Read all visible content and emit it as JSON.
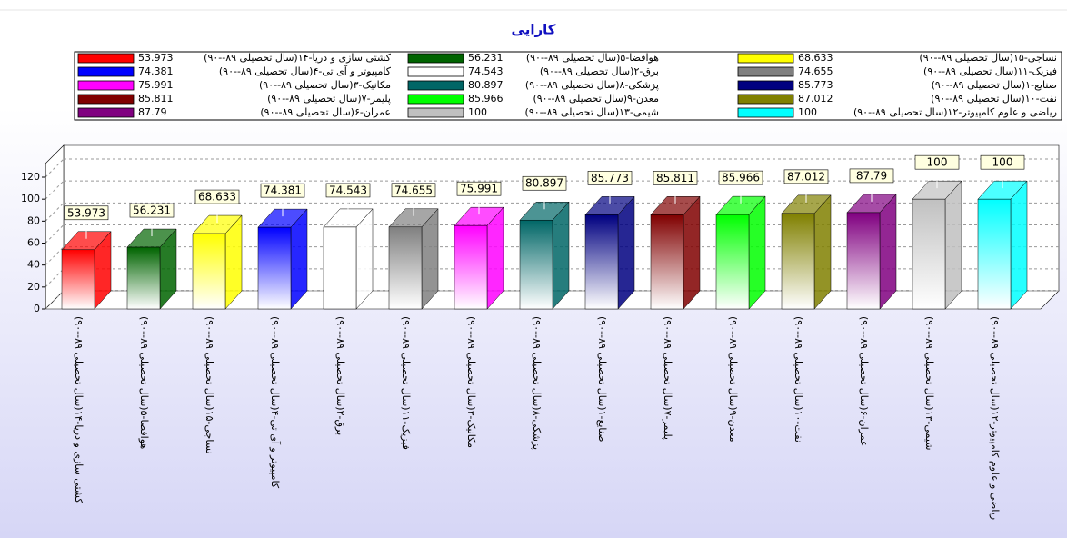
{
  "chart_data": {
    "type": "bar3d",
    "title": "کارایی",
    "categories": [
      "کشتی سازی و دریا-۱۴(سال تحصیلی ۸۹--۹۰)",
      "هوافضا-۵(سال تحصیلی ۸۹--۹۰)",
      "نساجی-۱۵(سال تحصیلی ۸۹--۹۰)",
      "کامپیوتر و آی تی-۴(سال تحصیلی ۸۹--۹۰)",
      "برق-۲(سال تحصیلی ۸۹--۹۰)",
      "فیزیک-۱۱(سال تحصیلی ۸۹--۹۰)",
      "مکانیک-۳(سال تحصیلی ۸۹--۹۰)",
      "پزشکی-۸(سال تحصیلی ۸۹--۹۰)",
      "صنایع-۱(سال تحصیلی ۸۹--۹۰)",
      "پلیمر-۷(سال تحصیلی ۸۹--۹۰)",
      "معدن-۹(سال تحصیلی ۸۹--۹۰)",
      "نفت-۱۰(سال تحصیلی ۸۹--۹۰)",
      "عمران-۶(سال تحصیلی ۸۹--۹۰)",
      "شیمی-۱۳(سال تحصیلی ۸۹--۹۰)",
      "ریاضی و علوم کامپیوتر-۱۲(سال تحصیلی ۸۹--۹۰)"
    ],
    "values": [
      53.973,
      56.231,
      68.633,
      74.381,
      74.543,
      74.655,
      75.991,
      80.897,
      85.773,
      85.811,
      85.966,
      87.012,
      87.79,
      100,
      100
    ],
    "colors": [
      "#ff0000",
      "#006400",
      "#ffff00",
      "#0000ff",
      "#ffffff",
      "#808080",
      "#ff00ff",
      "#006666",
      "#000080",
      "#800000",
      "#00ff00",
      "#808000",
      "#800080",
      "#c0c0c0",
      "#00ffff"
    ],
    "ylim": [
      0,
      120
    ],
    "yticks": [
      0,
      20,
      40,
      60,
      80,
      100,
      120
    ],
    "grid": true
  }
}
